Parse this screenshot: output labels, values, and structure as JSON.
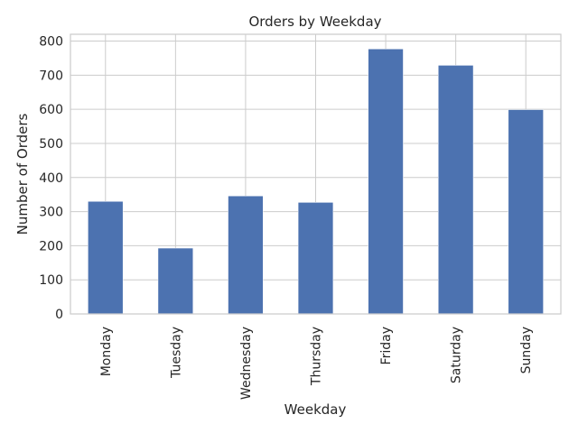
{
  "chart_data": {
    "type": "bar",
    "title": "Orders by Weekday",
    "xlabel": "Weekday",
    "ylabel": "Number of Orders",
    "categories": [
      "Monday",
      "Tuesday",
      "Wednesday",
      "Thursday",
      "Friday",
      "Saturday",
      "Sunday"
    ],
    "values": [
      330,
      193,
      346,
      327,
      777,
      729,
      599
    ],
    "ylim": [
      0,
      820
    ],
    "yticks": [
      0,
      100,
      200,
      300,
      400,
      500,
      600,
      700,
      800
    ],
    "grid": true,
    "colors": {
      "bar": "#4c72b0",
      "grid": "#cccccc",
      "axes_edge": "#cccccc",
      "background": "#ffffff",
      "text": "#262626"
    }
  }
}
